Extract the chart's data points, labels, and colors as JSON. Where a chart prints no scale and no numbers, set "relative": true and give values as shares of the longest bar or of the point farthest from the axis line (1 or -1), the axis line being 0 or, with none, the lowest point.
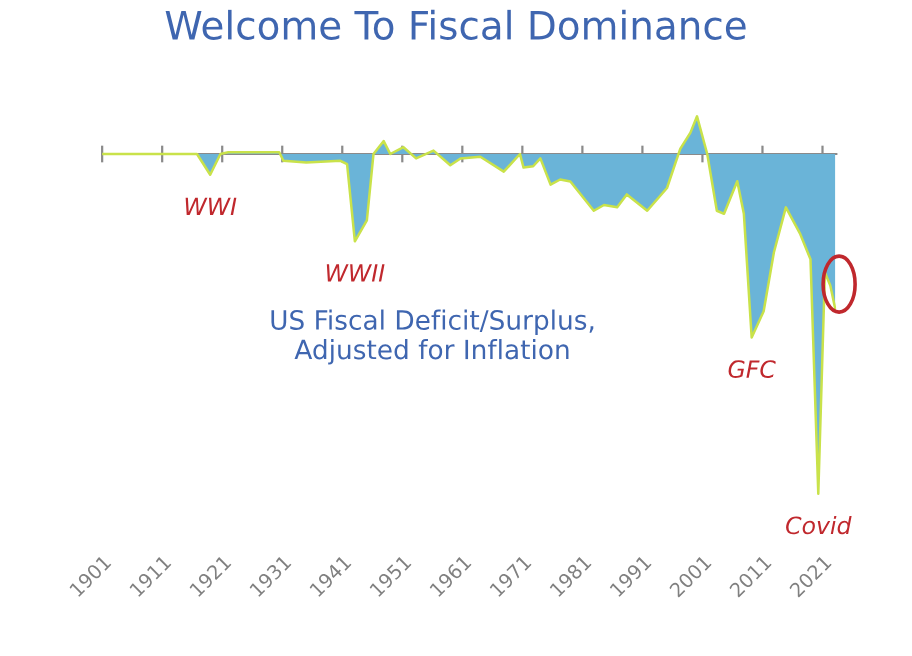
{
  "chart_data": {
    "type": "area",
    "title": "Welcome To Fiscal Dominance",
    "relative": true,
    "x": [
      1901,
      1916.8,
      1919,
      1920.7,
      1922,
      1930.5,
      1931.2,
      1935,
      1940.7,
      1941.8,
      1943.1,
      1945.1,
      1946.2,
      1947.9,
      1949,
      1951.2,
      1953.3,
      1956.2,
      1959,
      1960.7,
      1964,
      1967.9,
      1970.6,
      1971.2,
      1972.8,
      1974,
      1975.7,
      1977.3,
      1979,
      1982.9,
      1984.6,
      1986.8,
      1988.4,
      1991.8,
      1995.1,
      1997.3,
      1999,
      2000.1,
      2001.8,
      2003.4,
      2004.6,
      2006.8,
      2007.9,
      2009.2,
      2011.2,
      2012.9,
      2014.9,
      2017.3,
      2019,
      2020.3,
      2021.4,
      2022.3,
      2023.1
    ],
    "series": [
      {
        "color": "#6ab4d8",
        "values": [
          0,
          0,
          -0.061,
          0,
          0.005,
          0.005,
          -0.02,
          -0.025,
          -0.02,
          -0.03,
          -0.257,
          -0.195,
          0,
          0.038,
          0,
          0.02,
          -0.013,
          0.01,
          -0.033,
          -0.013,
          -0.008,
          -0.052,
          0,
          -0.04,
          -0.036,
          -0.013,
          -0.09,
          -0.075,
          -0.081,
          -0.167,
          -0.15,
          -0.157,
          -0.119,
          -0.167,
          -0.1,
          0.015,
          0.063,
          0.111,
          0,
          -0.167,
          -0.176,
          -0.08,
          -0.176,
          -0.54,
          -0.463,
          -0.29,
          -0.157,
          -0.236,
          -0.31,
          -1.0,
          -0.349,
          -0.387,
          -0.454
        ]
      }
    ],
    "xlim": [
      1901,
      2023.3
    ],
    "xticks": [
      1901,
      1911,
      1921,
      1931,
      1941,
      1951,
      1961,
      1971,
      1981,
      1991,
      2001,
      2011,
      2021
    ],
    "annotations": [
      {
        "text": "WWI",
        "x": 1919,
        "y": -0.061
      },
      {
        "text": "WWII",
        "x": 1943.1,
        "y": -0.257
      },
      {
        "text": "GFC",
        "x": 2009.2,
        "y": -0.54
      },
      {
        "text": "Covid",
        "x": 2020.3,
        "y": -1.0
      },
      "US Fiscal Deficit/Surplus,\nAdjusted for Inflation"
    ],
    "grid": false
  }
}
